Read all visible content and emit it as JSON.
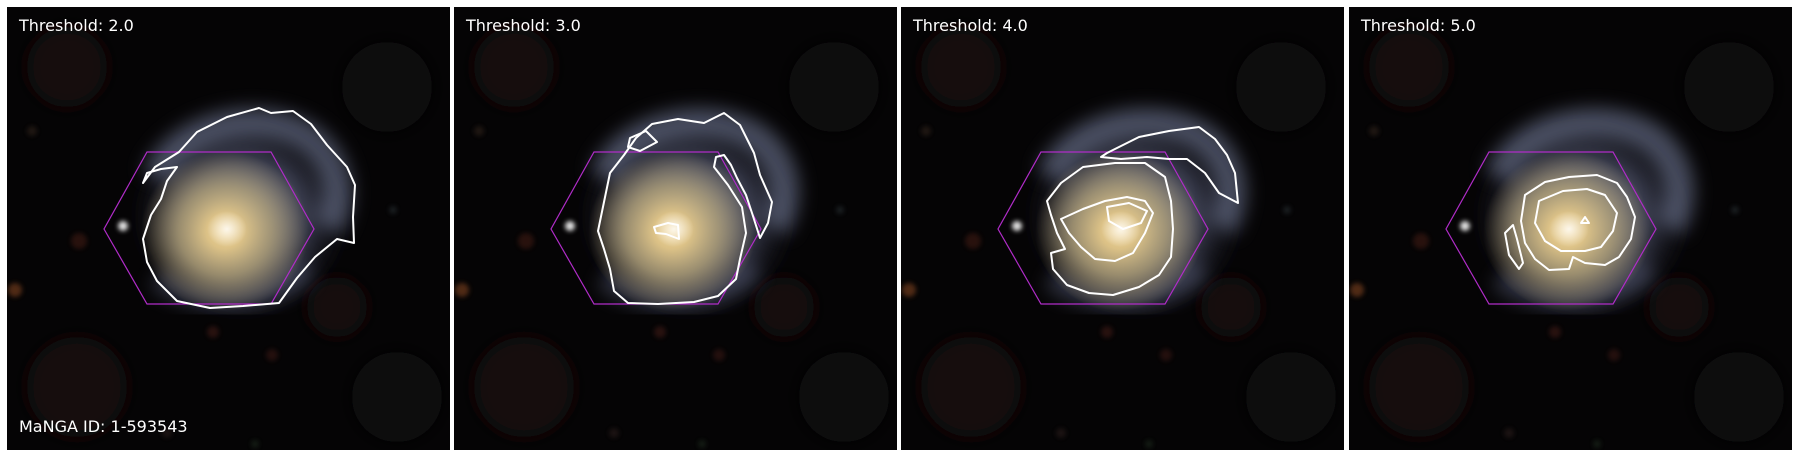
{
  "figure": {
    "colors": {
      "figure_background": "#ffffff",
      "sky": "#050405",
      "galaxy_core": "#f2d79a",
      "galaxy_disk": "#b9a779",
      "spiral_arms": "#8a93ad",
      "contour": "#ffffff",
      "ifu_hexagon": "#b02cc8"
    },
    "manga_id_text": "MaNGA ID: 1-593543",
    "panels": [
      {
        "threshold_text": "Threshold: 2.0"
      },
      {
        "threshold_text": "Threshold: 3.0"
      },
      {
        "threshold_text": "Threshold: 4.0"
      },
      {
        "threshold_text": "Threshold: 5.0"
      }
    ],
    "icons": {
      "galaxy": "galaxy-image",
      "hexagon": "ifu-hexagon-icon",
      "contour": "threshold-contour"
    }
  }
}
